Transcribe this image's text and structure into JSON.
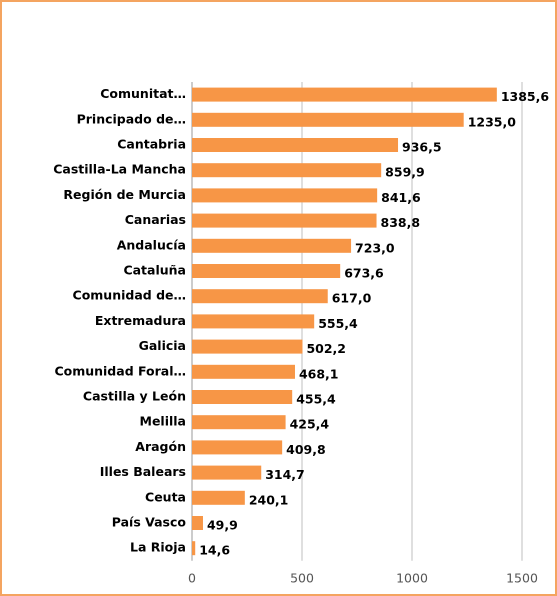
{
  "chart_data": {
    "type": "bar",
    "orientation": "horizontal",
    "categories": [
      "Comunitat…",
      "Principado de…",
      "Cantabria",
      "Castilla-La Mancha",
      "Región de Murcia",
      "Canarias",
      "Andalucía",
      "Cataluña",
      "Comunidad de…",
      "Extremadura",
      "Galicia",
      "Comunidad Foral…",
      "Castilla y León",
      "Melilla",
      "Aragón",
      "Illes Balears",
      "Ceuta",
      "País Vasco",
      "La Rioja"
    ],
    "values": [
      1385.6,
      1235.0,
      936.5,
      859.9,
      841.6,
      838.8,
      723.0,
      673.6,
      617.0,
      555.4,
      502.2,
      468.1,
      455.4,
      425.4,
      409.8,
      314.7,
      240.1,
      49.9,
      14.6
    ],
    "value_labels": [
      "1385,6",
      "1235,0",
      "936,5",
      "859,9",
      "841,6",
      "838,8",
      "723,0",
      "673,6",
      "617,0",
      "555,4",
      "502,2",
      "468,1",
      "455,4",
      "425,4",
      "409,8",
      "314,7",
      "240,1",
      "49,9",
      "14,6"
    ],
    "color": "#f79646",
    "xlim": [
      0,
      1500
    ],
    "xticks": [
      0,
      500,
      1000,
      1500
    ],
    "grid": true
  }
}
